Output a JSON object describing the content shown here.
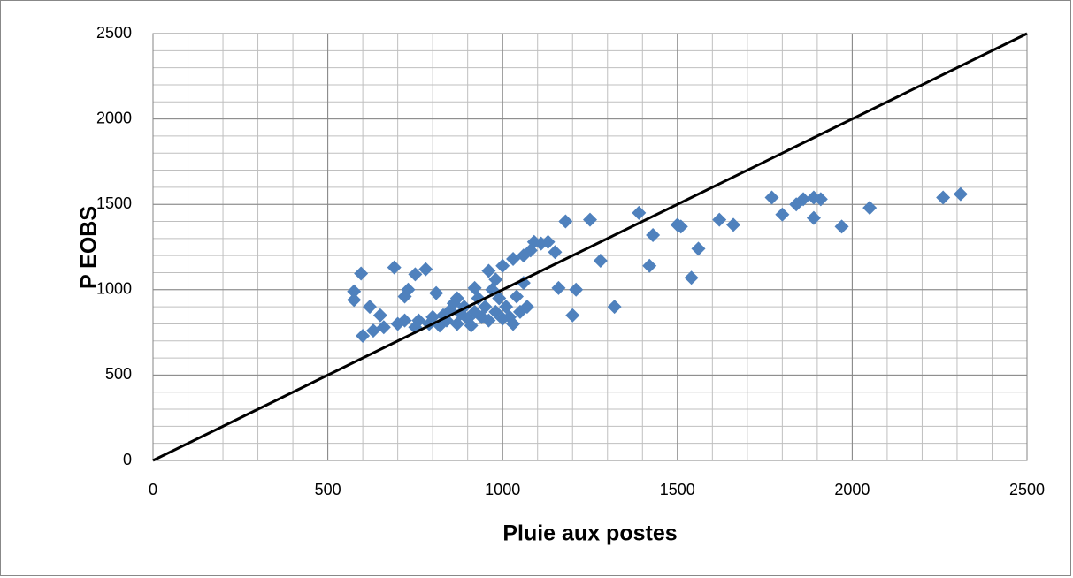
{
  "chart_data": {
    "type": "scatter",
    "x_label": "Pluie aux postes",
    "y_label": "P EOBS",
    "xlim": [
      0,
      2500
    ],
    "ylim": [
      0,
      2500
    ],
    "xticks": [
      0,
      500,
      1000,
      1500,
      2000,
      2500
    ],
    "yticks": [
      0,
      500,
      1000,
      1500,
      2000,
      2500
    ],
    "grid": true,
    "minor_grid_step": 100,
    "series": [
      {
        "type": "scatter",
        "color": "#4f81bd",
        "x": [
          575,
          575,
          595,
          600,
          620,
          630,
          650,
          660,
          690,
          700,
          720,
          720,
          730,
          750,
          750,
          760,
          780,
          790,
          800,
          810,
          820,
          830,
          840,
          850,
          860,
          870,
          870,
          880,
          890,
          900,
          910,
          920,
          920,
          930,
          940,
          950,
          960,
          960,
          970,
          980,
          980,
          990,
          1000,
          1000,
          1010,
          1020,
          1030,
          1030,
          1040,
          1050,
          1060,
          1060,
          1070,
          1080,
          1090,
          1110,
          1130,
          1150,
          1160,
          1180,
          1200,
          1210,
          1250,
          1280,
          1320,
          1390,
          1420,
          1430,
          1500,
          1510,
          1540,
          1560,
          1620,
          1660,
          1770,
          1800,
          1840,
          1860,
          1890,
          1890,
          1910,
          1970,
          2050,
          2260,
          2310
        ],
        "values": [
          990,
          940,
          1095,
          730,
          900,
          760,
          850,
          780,
          1130,
          800,
          820,
          960,
          1000,
          1090,
          780,
          820,
          1120,
          800,
          840,
          980,
          790,
          850,
          820,
          880,
          920,
          800,
          950,
          860,
          900,
          830,
          790,
          870,
          1010,
          950,
          840,
          900,
          820,
          1110,
          1000,
          870,
          1060,
          950,
          1140,
          830,
          900,
          840,
          800,
          1180,
          960,
          870,
          1040,
          1200,
          900,
          1230,
          1280,
          1270,
          1280,
          1220,
          1010,
          1400,
          850,
          1000,
          1410,
          1170,
          900,
          1450,
          1140,
          1320,
          1380,
          1370,
          1070,
          1240,
          1410,
          1380,
          1540,
          1440,
          1500,
          1530,
          1420,
          1540,
          1530,
          1370,
          1480,
          1540,
          1560
        ]
      },
      {
        "type": "line",
        "color": "#000000",
        "x": [
          0,
          2500
        ],
        "values": [
          0,
          2500
        ]
      }
    ]
  }
}
